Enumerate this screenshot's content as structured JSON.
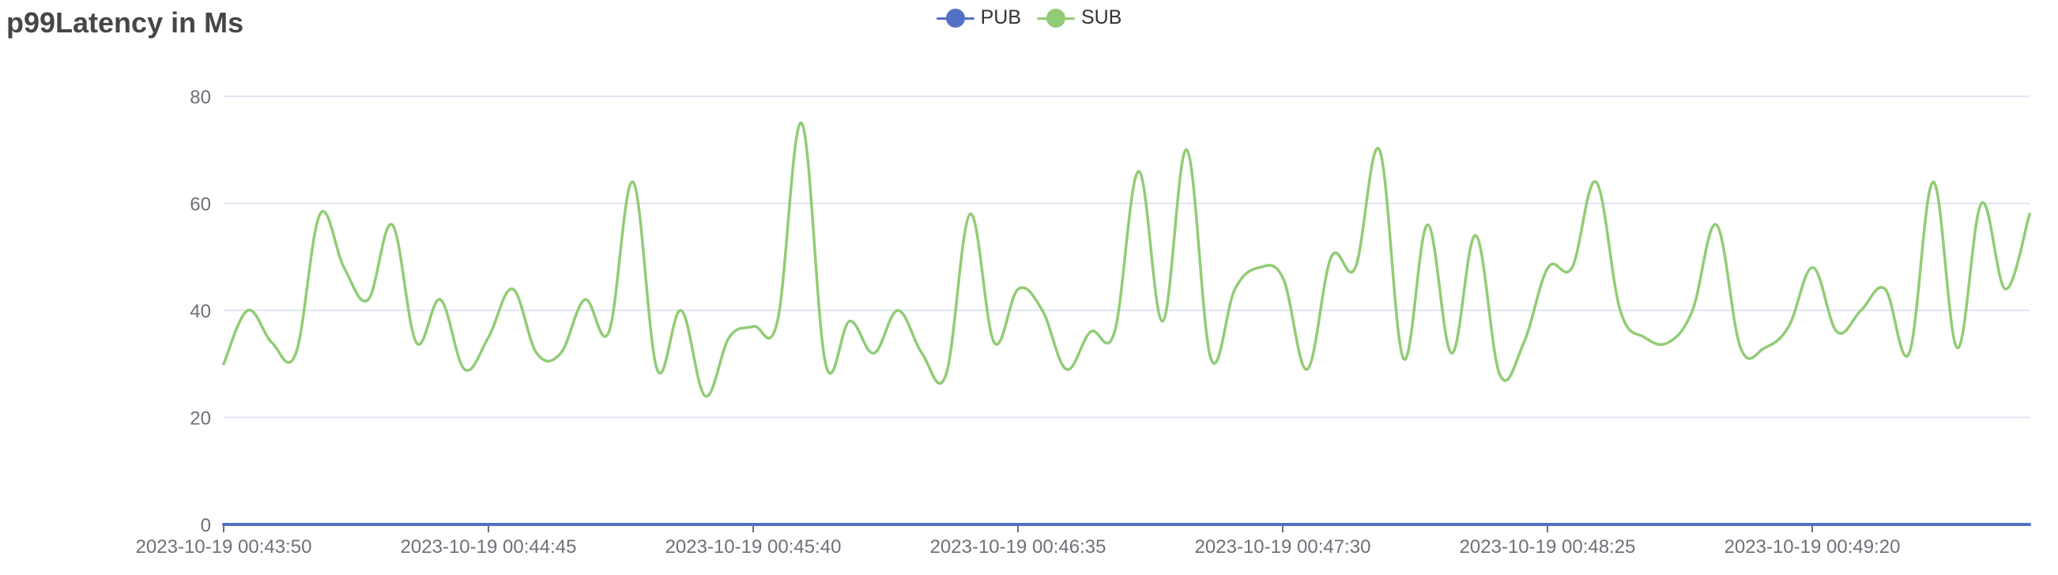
{
  "chart_data": {
    "type": "line",
    "title": "p99Latency in Ms",
    "xlabel": "",
    "ylabel": "",
    "ylim": [
      0,
      80
    ],
    "yticks": [
      0,
      20,
      40,
      60,
      80
    ],
    "smooth": true,
    "grid": true,
    "legend_position": "top-center",
    "x_labels": [
      "2023-10-19 00:43:50",
      "2023-10-19 00:44:45",
      "2023-10-19 00:45:40",
      "2023-10-19 00:46:35",
      "2023-10-19 00:47:30",
      "2023-10-19 00:48:25",
      "2023-10-19 00:49:20"
    ],
    "series": [
      {
        "name": "PUB",
        "color": "#5470c6",
        "values": [
          0,
          0,
          0,
          0,
          0,
          0,
          0,
          0,
          0,
          0,
          0,
          0,
          0,
          0,
          0,
          0,
          0,
          0,
          0,
          0,
          0,
          0,
          0,
          0,
          0,
          0,
          0,
          0,
          0,
          0,
          0,
          0,
          0,
          0,
          0,
          0,
          0,
          0,
          0,
          0,
          0,
          0,
          0,
          0,
          0,
          0,
          0,
          0,
          0,
          0,
          0,
          0,
          0,
          0,
          0,
          0,
          0,
          0,
          0,
          0,
          0,
          0,
          0,
          0,
          0,
          0,
          0,
          0,
          0,
          0,
          0,
          0,
          0,
          0,
          0,
          0
        ]
      },
      {
        "name": "SUB",
        "color": "#91cc75",
        "values": [
          30,
          40,
          34,
          32,
          58,
          48,
          42,
          56,
          34,
          42,
          29,
          35,
          44,
          32,
          32,
          42,
          36,
          64,
          29,
          40,
          24,
          35,
          37,
          38,
          75,
          30,
          38,
          32,
          40,
          32,
          28,
          58,
          34,
          44,
          40,
          29,
          36,
          36,
          66,
          38,
          70,
          31,
          44,
          48,
          46,
          29,
          50,
          48,
          70,
          31,
          56,
          32,
          54,
          28,
          34,
          48,
          48,
          64,
          40,
          35,
          34,
          40,
          56,
          33,
          33,
          37,
          48,
          36,
          40,
          44,
          32,
          64,
          33,
          60,
          44,
          58
        ]
      }
    ]
  }
}
